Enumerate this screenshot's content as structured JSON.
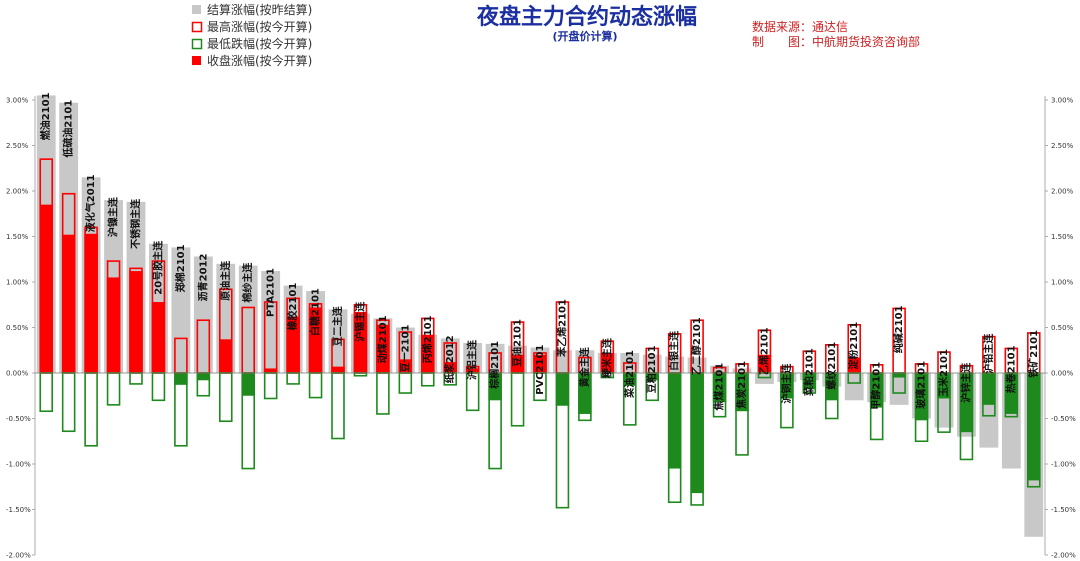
{
  "title": "夜盘主力合约动态涨幅",
  "subtitle": "(开盘价计算)",
  "source_lines": [
    "数据来源：通达信",
    "制　　图：中航期货投资咨询部"
  ],
  "legend": [
    {
      "label": "结算涨幅(按昨结算)",
      "style": "gray-fill"
    },
    {
      "label": "最高涨幅(按今开算)",
      "style": "red-outline"
    },
    {
      "label": "最低跌幅(按今开算)",
      "style": "green-outline"
    },
    {
      "label": "收盘涨幅(按今开算)",
      "style": "red-fill"
    }
  ],
  "colors": {
    "settle": "#c8c8c8",
    "up": "#ff0000",
    "down": "#1e8a1e"
  },
  "chart_data": {
    "type": "bar",
    "ylim": [
      -2.0,
      3.0
    ],
    "yticks": [
      "3.00%",
      "2.50%",
      "2.00%",
      "1.50%",
      "1.00%",
      "0.50%",
      "0.00%",
      "-0.50%",
      "-1.00%",
      "-1.50%",
      "-2.00%"
    ],
    "categories": [
      "燃油2101",
      "低硫油2101",
      "液化气2011",
      "沪镍主连",
      "不锈钢主连",
      "20号胶主连",
      "郑棉2101",
      "沥青2012",
      "原油主连",
      "棉纱主连",
      "PTA2101",
      "橡胶2101",
      "白糖2101",
      "豆二主连",
      "沪锡主连",
      "动煤2101",
      "豆一2101",
      "丙烯2101",
      "纸浆2012",
      "沪铝主连",
      "棕榈2101",
      "豆油2101",
      "PVC2101",
      "苯乙烯2101",
      "黄金主连",
      "粳米主连",
      "菜油2101",
      "豆粕2101",
      "白银主连",
      "乙二醇2101",
      "焦煤2101",
      "焦炭2101",
      "乙烯2101",
      "沪铜主连",
      "菜粕2101",
      "螺纹2101",
      "淀粉2101",
      "甲醇2101",
      "纯碱2101",
      "玻璃2101",
      "玉米2101",
      "沪锌主连",
      "沪铅主连",
      "热卷2101",
      "铁矿2101"
    ],
    "series": [
      {
        "name": "结算涨幅(按昨结算)",
        "values": [
          3.05,
          2.97,
          2.15,
          1.9,
          1.88,
          1.42,
          1.38,
          1.28,
          1.2,
          1.18,
          1.12,
          0.96,
          0.9,
          0.7,
          0.65,
          0.6,
          0.5,
          0.42,
          0.38,
          0.33,
          0.32,
          0.3,
          0.28,
          0.25,
          0.25,
          0.22,
          0.22,
          0.2,
          0.18,
          0.17,
          0.08,
          0.05,
          -0.12,
          -0.1,
          -0.08,
          -0.15,
          -0.3,
          -0.32,
          -0.35,
          -0.5,
          -0.6,
          -0.7,
          -0.82,
          -1.05,
          -1.8
        ]
      },
      {
        "name": "最高涨幅(按今开算)",
        "values": [
          2.35,
          1.97,
          1.6,
          1.23,
          1.15,
          1.23,
          0.38,
          0.58,
          0.92,
          0.72,
          0.78,
          0.82,
          0.76,
          0.37,
          0.75,
          0.58,
          0.45,
          0.6,
          0.33,
          0.07,
          0.22,
          0.56,
          0.22,
          0.78,
          0.17,
          0.35,
          0.11,
          0.27,
          0.43,
          0.58,
          0.06,
          0.1,
          0.47,
          0.07,
          0.24,
          0.31,
          0.53,
          0.09,
          0.71,
          0.1,
          0.23,
          0.08,
          0.4,
          0.27,
          0.44
        ]
      },
      {
        "name": "最低跌幅(按今开算)",
        "values": [
          -0.42,
          -0.64,
          -0.8,
          -0.35,
          -0.12,
          -0.3,
          -0.8,
          -0.25,
          -0.53,
          -1.05,
          -0.28,
          -0.12,
          -0.27,
          -0.72,
          -0.03,
          -0.45,
          -0.22,
          -0.14,
          -0.13,
          -0.41,
          -1.05,
          -0.58,
          -0.3,
          -1.48,
          -0.52,
          -0.05,
          -0.57,
          -0.3,
          -1.42,
          -1.45,
          -0.48,
          -0.9,
          -0.05,
          -0.6,
          -0.22,
          -0.5,
          -0.11,
          -0.73,
          -0.22,
          -0.75,
          -0.65,
          -0.95,
          -0.47,
          -0.48,
          -1.25
        ]
      },
      {
        "name": "收盘涨幅(按今开算)",
        "values": [
          1.85,
          1.52,
          1.53,
          1.05,
          1.12,
          0.78,
          -0.13,
          -0.08,
          0.37,
          -0.25,
          0.05,
          0.62,
          0.72,
          0.07,
          0.67,
          0.53,
          0.15,
          0.42,
          0.12,
          0.05,
          -0.3,
          0.2,
          0.2,
          -0.36,
          -0.45,
          0.22,
          -0.14,
          -0.08,
          -1.05,
          -1.32,
          -0.32,
          -0.42,
          0.2,
          -0.28,
          -0.18,
          -0.3,
          0.17,
          -0.38,
          -0.05,
          -0.52,
          -0.28,
          -0.65,
          -0.35,
          -0.45,
          -1.18
        ]
      }
    ]
  }
}
